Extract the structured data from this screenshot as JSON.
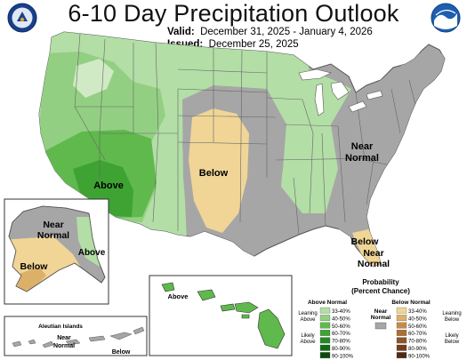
{
  "title": "6-10 Day Precipitation Outlook",
  "valid_label": "Valid:",
  "valid_value": "December 31, 2025 - January 4, 2026",
  "issued_label": "Issued:",
  "issued_value": "December 25, 2025",
  "region_labels": {
    "conus_above": "Above",
    "conus_below": "Below",
    "conus_near_1": "Near",
    "conus_near_2": "Normal",
    "florida_below": "Below",
    "florida_near_1": "Near",
    "florida_near_2": "Normal",
    "alaska_near_1": "Near",
    "alaska_near_2": "Normal",
    "alaska_above": "Above",
    "alaska_below": "Below",
    "hawaii_above": "Above",
    "aleutian_title": "Aleutian Islands",
    "aleutian_near_1": "Near",
    "aleutian_near_2": "Normal",
    "aleutian_below": "Below"
  },
  "legend": {
    "title_1": "Probability",
    "title_2": "(Percent Chance)",
    "above_header": "Above Normal",
    "below_header": "Below Normal",
    "near_1": "Near",
    "near_2": "Normal",
    "leaning_above_1": "Leaning",
    "leaning_above_2": "Above",
    "likely_above_1": "Likely",
    "likely_above_2": "Above",
    "leaning_below_1": "Leaning",
    "leaning_below_2": "Below",
    "likely_below_1": "Likely",
    "likely_below_2": "Below",
    "ranges": [
      "33-40%",
      "40-50%",
      "50-60%",
      "60-70%",
      "70-80%",
      "80-90%",
      "90-100%"
    ],
    "above_colors": [
      "#b3dea6",
      "#93cf82",
      "#5fb94c",
      "#3ea332",
      "#218a22",
      "#0f6c15",
      "#0a4a0e"
    ],
    "below_colors": [
      "#f0d596",
      "#ddb06a",
      "#c78b47",
      "#ad6d33",
      "#8f5428",
      "#703e1e",
      "#4d2a14"
    ],
    "near_color": "#a6a6a6"
  },
  "logos": {
    "left": "noaa-commerce-seal-icon",
    "right": "noaa-logo-icon"
  }
}
